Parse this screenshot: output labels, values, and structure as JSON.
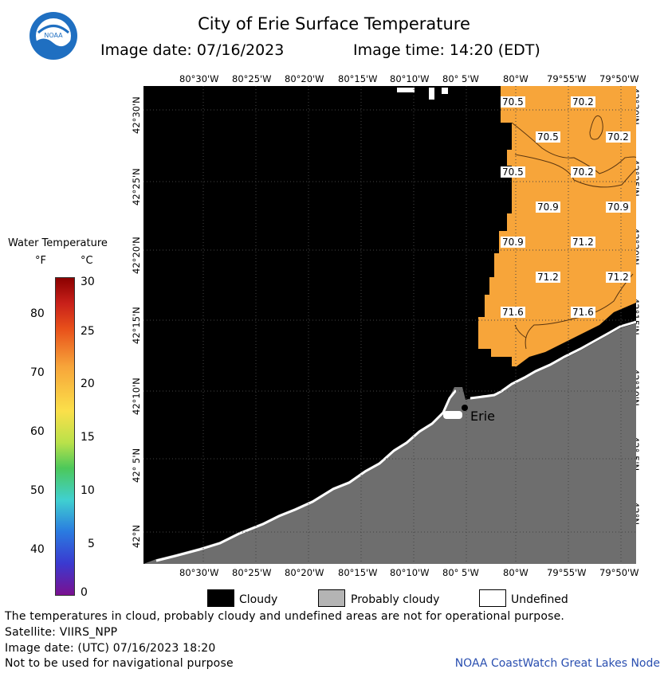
{
  "header": {
    "title": "City of Erie Surface Temperature",
    "image_date": "Image date: 07/16/2023",
    "image_time": "Image time: 14:20 (EDT)",
    "logo_text": "NOAA"
  },
  "map": {
    "lon_labels": [
      "80°30'W",
      "80°25'W",
      "80°20'W",
      "80°15'W",
      "80°10'W",
      "80° 5'W",
      "80°W",
      "79°55'W",
      "79°50'W"
    ],
    "lat_labels": [
      "42°30'N",
      "42°25'N",
      "42°20'N",
      "42°15'N",
      "42°10'N",
      "42° 5'N",
      "42°N"
    ],
    "temperature_labels": [
      "70.5",
      "70.2",
      "70.5",
      "70.2",
      "70.5",
      "70.2",
      "70.9",
      "70.9",
      "70.9",
      "71.2",
      "71.2",
      "71.2",
      "71.6",
      "71.6"
    ],
    "city_label": "Erie",
    "colors": {
      "cloud": "#000000",
      "probably_cloudy": "#6e6e6e",
      "undefined": "#ffffff",
      "water": "#f7a53a"
    }
  },
  "color_legend": {
    "title": "Water Temperature",
    "unit_f": "°F",
    "unit_c": "°C",
    "f_ticks": [
      "80",
      "70",
      "60",
      "50",
      "40"
    ],
    "c_ticks": [
      "30",
      "25",
      "20",
      "15",
      "10",
      "5",
      "0"
    ]
  },
  "category_legend": {
    "cloudy": "Cloudy",
    "probably_cloudy": "Probably cloudy",
    "undefined": "Undefined"
  },
  "footer": {
    "line1": "The temperatures in cloud, probably cloudy and undefined areas are not for operational purpose.",
    "line2": "Satellite: VIIRS_NPP",
    "line3": "Image date: (UTC) 07/16/2023  18:20",
    "line4": "Not to be used for navigational purpose",
    "credit": "NOAA CoastWatch Great Lakes Node"
  }
}
